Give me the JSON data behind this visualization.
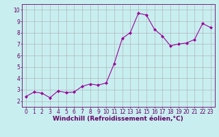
{
  "x": [
    0,
    1,
    2,
    3,
    4,
    5,
    6,
    7,
    8,
    9,
    10,
    11,
    12,
    13,
    14,
    15,
    16,
    17,
    18,
    19,
    20,
    21,
    22,
    23
  ],
  "y": [
    2.4,
    2.8,
    2.7,
    2.3,
    2.9,
    2.75,
    2.8,
    3.3,
    3.5,
    3.4,
    3.6,
    5.3,
    7.5,
    8.0,
    9.7,
    9.55,
    8.3,
    7.7,
    6.85,
    7.0,
    7.1,
    7.4,
    8.8,
    8.45
  ],
  "line_color": "#990099",
  "marker": "D",
  "marker_size": 2,
  "bg_color": "#c8eef0",
  "grid_color": "#aaaaaa",
  "xlabel": "Windchill (Refroidissement éolien,°C)",
  "ylabel": "",
  "xlim": [
    -0.5,
    23.5
  ],
  "ylim": [
    1.5,
    10.5
  ],
  "yticks": [
    2,
    3,
    4,
    5,
    6,
    7,
    8,
    9,
    10
  ],
  "xticks": [
    0,
    1,
    2,
    3,
    4,
    5,
    6,
    7,
    8,
    9,
    10,
    11,
    12,
    13,
    14,
    15,
    16,
    17,
    18,
    19,
    20,
    21,
    22,
    23
  ],
  "tick_label_fontsize": 5.5,
  "xlabel_fontsize": 6.5,
  "axis_label_color": "#660066",
  "tick_color": "#660066",
  "spine_color": "#660066"
}
